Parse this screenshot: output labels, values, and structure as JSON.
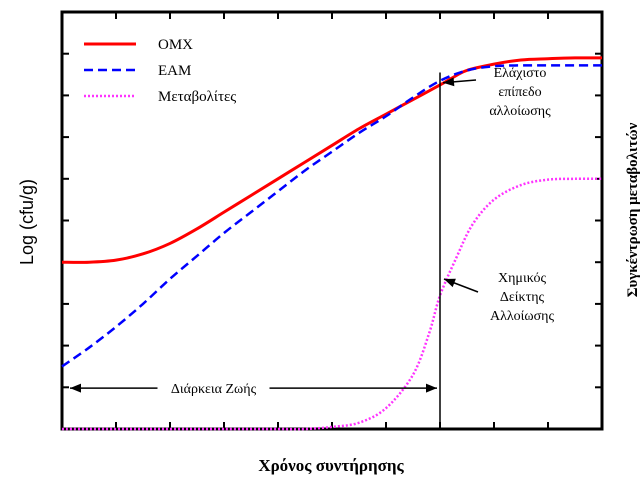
{
  "chart_data": {
    "type": "line",
    "xlabel": "Χρόνος συντήρησης",
    "ylabel": "Log (cfu/g)",
    "y2label": "Συγκέντρωση μεταβολιτών",
    "xlim": [
      0,
      10
    ],
    "ylim": [
      0,
      10
    ],
    "x_ticks": [
      0,
      1,
      2,
      3,
      4,
      5,
      6,
      7,
      8,
      9,
      10
    ],
    "y_ticks": [
      0,
      1,
      2,
      3,
      4,
      5,
      6,
      7,
      8,
      9,
      10
    ],
    "legend_position": "top-left",
    "grid": false,
    "series": [
      {
        "name": "OMX",
        "color": "#ff0000",
        "style": "solid",
        "x": [
          0,
          0.5,
          1,
          1.5,
          2,
          2.5,
          3,
          3.5,
          4,
          4.5,
          5,
          5.5,
          6,
          6.5,
          7,
          7.2,
          7.5,
          8,
          8.5,
          9,
          9.5,
          10
        ],
        "y": [
          4.0,
          4.0,
          4.05,
          4.2,
          4.45,
          4.8,
          5.2,
          5.6,
          6.0,
          6.4,
          6.8,
          7.2,
          7.55,
          7.9,
          8.25,
          8.4,
          8.6,
          8.75,
          8.85,
          8.88,
          8.9,
          8.9
        ]
      },
      {
        "name": "EAM",
        "color": "#0000ff",
        "style": "dashed",
        "x": [
          0,
          0.5,
          1,
          1.5,
          2,
          2.5,
          3,
          3.5,
          4,
          4.5,
          5,
          5.5,
          6,
          6.5,
          7,
          7.5,
          8,
          8.5,
          9,
          9.5,
          10
        ],
        "y": [
          1.5,
          1.95,
          2.45,
          3.0,
          3.6,
          4.15,
          4.7,
          5.2,
          5.7,
          6.2,
          6.65,
          7.1,
          7.5,
          7.95,
          8.35,
          8.6,
          8.7,
          8.72,
          8.72,
          8.72,
          8.72
        ]
      },
      {
        "name": "Μεταβολίτες",
        "color": "#ff33ff",
        "style": "dotted",
        "x": [
          0,
          1,
          2,
          3,
          4,
          4.5,
          5,
          5.5,
          6,
          6.5,
          6.8,
          7,
          7.3,
          7.6,
          8,
          8.5,
          9,
          9.5,
          10
        ],
        "y": [
          0,
          0,
          0,
          0,
          0,
          0,
          0.05,
          0.15,
          0.5,
          1.3,
          2.3,
          3.2,
          4.1,
          4.9,
          5.5,
          5.85,
          5.98,
          6.0,
          6.0
        ]
      }
    ],
    "threshold_x": 7.0,
    "annotations": [
      {
        "id": "min_spoilage",
        "text_lines": [
          "Ελάχιστο",
          "επίπεδο",
          "αλλοίωσης"
        ],
        "point": [
          7.0,
          8.4
        ]
      },
      {
        "id": "chemical_index",
        "text_lines": [
          "Χημικός",
          "Δείκτης",
          "Αλλοίωσης"
        ],
        "point": [
          7.0,
          3.2
        ]
      },
      {
        "id": "shelf_life",
        "text": "Διάρκεια Ζωής",
        "from_x": 0,
        "to_x": 7.0,
        "y": 1.1
      }
    ]
  }
}
